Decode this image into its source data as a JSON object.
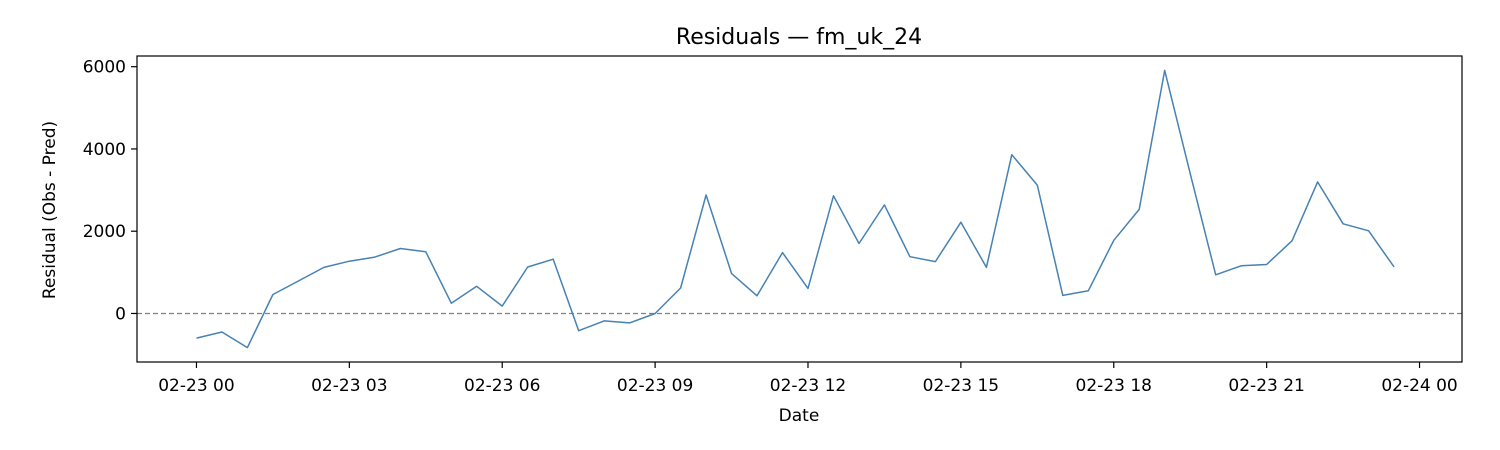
{
  "chart_data": {
    "type": "line",
    "title": "Residuals — fm_uk_24",
    "xlabel": "Date",
    "ylabel": "Residual (Obs - Pred)",
    "x_tick_labels": [
      "02-23 00",
      "02-23 03",
      "02-23 06",
      "02-23 09",
      "02-23 12",
      "02-23 15",
      "02-23 18",
      "02-23 21",
      "02-24 00"
    ],
    "y_ticks": [
      0,
      2000,
      4000,
      6000
    ],
    "xlim": [
      "2023-02-22T22:50",
      "2023-02-24T00:50"
    ],
    "ylim": [
      -1180,
      6260
    ],
    "colors": {
      "line": "#4682b4",
      "zero_line": "#808080"
    },
    "reference_line": {
      "y": 0,
      "style": "dashed"
    },
    "grid": false,
    "series": [
      {
        "x": [
          "2023-02-23T00:00",
          "2023-02-23T00:30",
          "2023-02-23T01:00",
          "2023-02-23T01:30",
          "2023-02-23T02:00",
          "2023-02-23T02:30",
          "2023-02-23T03:00",
          "2023-02-23T03:30",
          "2023-02-23T04:00",
          "2023-02-23T04:30",
          "2023-02-23T05:00",
          "2023-02-23T05:30",
          "2023-02-23T06:00",
          "2023-02-23T06:30",
          "2023-02-23T07:00",
          "2023-02-23T07:30",
          "2023-02-23T08:00",
          "2023-02-23T08:30",
          "2023-02-23T09:00",
          "2023-02-23T09:30",
          "2023-02-23T10:00",
          "2023-02-23T10:30",
          "2023-02-23T11:00",
          "2023-02-23T11:30",
          "2023-02-23T12:00",
          "2023-02-23T12:30",
          "2023-02-23T13:00",
          "2023-02-23T13:30",
          "2023-02-23T14:00",
          "2023-02-23T14:30",
          "2023-02-23T15:00",
          "2023-02-23T15:30",
          "2023-02-23T16:00",
          "2023-02-23T16:30",
          "2023-02-23T17:00",
          "2023-02-23T17:30",
          "2023-02-23T18:00",
          "2023-02-23T18:30",
          "2023-02-23T19:00",
          "2023-02-23T19:30",
          "2023-02-23T20:00",
          "2023-02-23T20:30",
          "2023-02-23T21:00",
          "2023-02-23T21:30",
          "2023-02-23T22:00",
          "2023-02-23T22:30",
          "2023-02-23T23:00",
          "2023-02-23T23:30"
        ],
        "y": [
          -600,
          -450,
          -830,
          460,
          790,
          1120,
          1270,
          1370,
          1580,
          1500,
          250,
          660,
          180,
          1130,
          1320,
          -420,
          -180,
          -230,
          0,
          620,
          2880,
          970,
          430,
          1480,
          610,
          2860,
          1700,
          2640,
          1380,
          1260,
          2220,
          1120,
          3860,
          3120,
          440,
          550,
          1780,
          2530,
          5910,
          3400,
          940,
          1160,
          1190,
          1770,
          3200,
          2180,
          2010,
          1130
        ]
      }
    ]
  }
}
